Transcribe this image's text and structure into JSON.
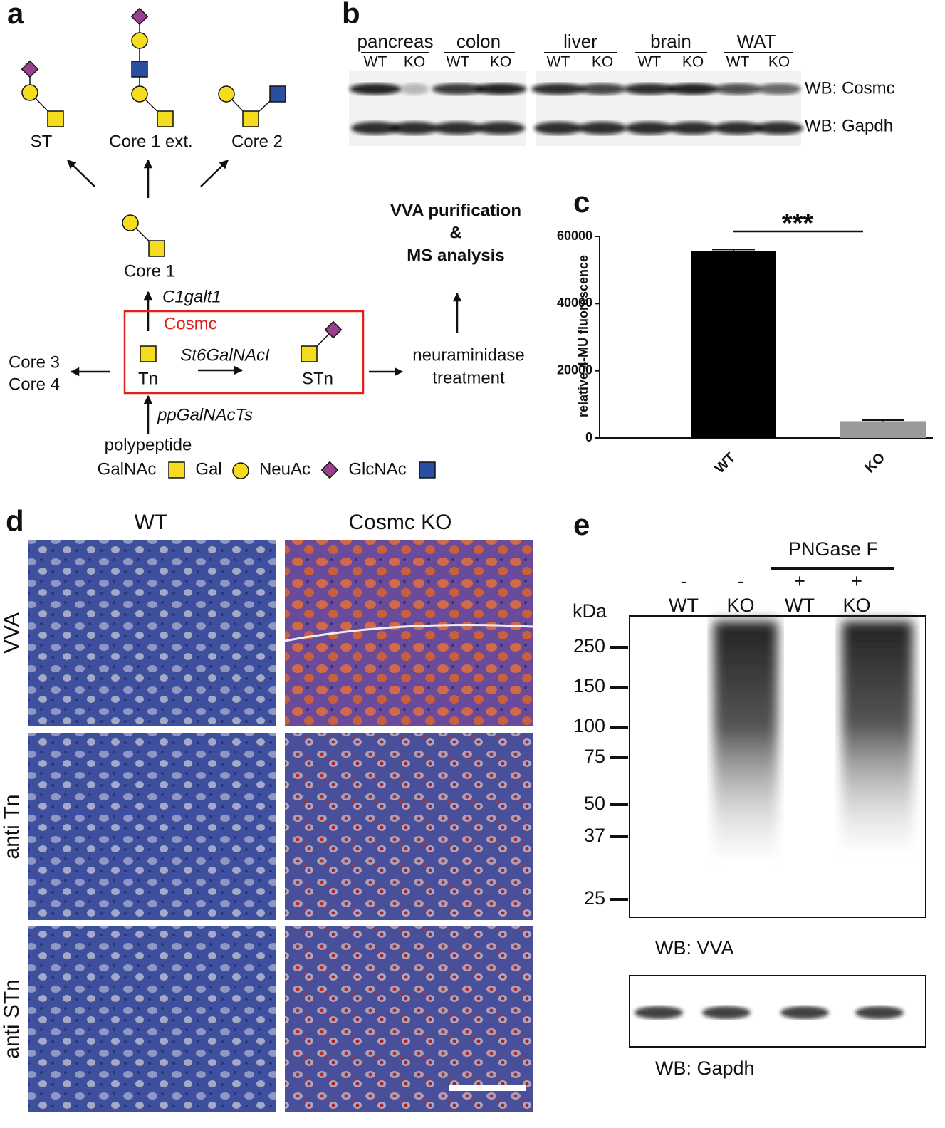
{
  "panel_a": {
    "label": "a",
    "glycans": [
      "ST",
      "Core 1 ext.",
      "Core 2",
      "Core 1",
      "Tn",
      "STn"
    ],
    "enzymes": [
      "C1galt1",
      "St6GalNAcI",
      "ppGalNAcTs"
    ],
    "chaperone": "Cosmc",
    "other_cores": [
      "Core 3",
      "Core 4"
    ],
    "substrate": "polypeptide",
    "neuraminidase": [
      "neuraminidase",
      "treatment"
    ],
    "purification": [
      "VVA purification",
      "&",
      "MS analysis"
    ],
    "legend": [
      "GalNAc",
      "Gal",
      "NeuAc",
      "GlcNAc"
    ]
  },
  "panel_b": {
    "label": "b",
    "tissues": [
      "pancreas",
      "colon",
      "liver",
      "brain",
      "WAT"
    ],
    "genotypes": [
      "WT",
      "KO"
    ],
    "blots": [
      "WB: Cosmc",
      "WB: Gapdh"
    ]
  },
  "chart_data": {
    "type": "bar",
    "label": "c",
    "ylabel": "relative 4-MU fluorescence",
    "categories": [
      "WT",
      "KO"
    ],
    "values": [
      55700,
      5000
    ],
    "errors": [
      400,
      300
    ],
    "colors": [
      "#000000",
      "#9a9a9a"
    ],
    "ylim": [
      0,
      60000
    ],
    "yticks": [
      0,
      20000,
      40000,
      60000
    ],
    "annotation": "***"
  },
  "panel_d": {
    "label": "d",
    "columns": [
      "WT",
      "Cosmc KO"
    ],
    "rows": [
      "VVA",
      "anti Tn",
      "anti STn"
    ]
  },
  "panel_e": {
    "label": "e",
    "treatment": "PNGase F",
    "signs": [
      "-",
      "-",
      "+",
      "+"
    ],
    "lanes": [
      "WT",
      "KO",
      "WT",
      "KO"
    ],
    "unit": "kDa",
    "markers": [
      250,
      150,
      100,
      75,
      50,
      37,
      25
    ],
    "blots": [
      "WB: VVA",
      "WB: Gapdh"
    ]
  }
}
